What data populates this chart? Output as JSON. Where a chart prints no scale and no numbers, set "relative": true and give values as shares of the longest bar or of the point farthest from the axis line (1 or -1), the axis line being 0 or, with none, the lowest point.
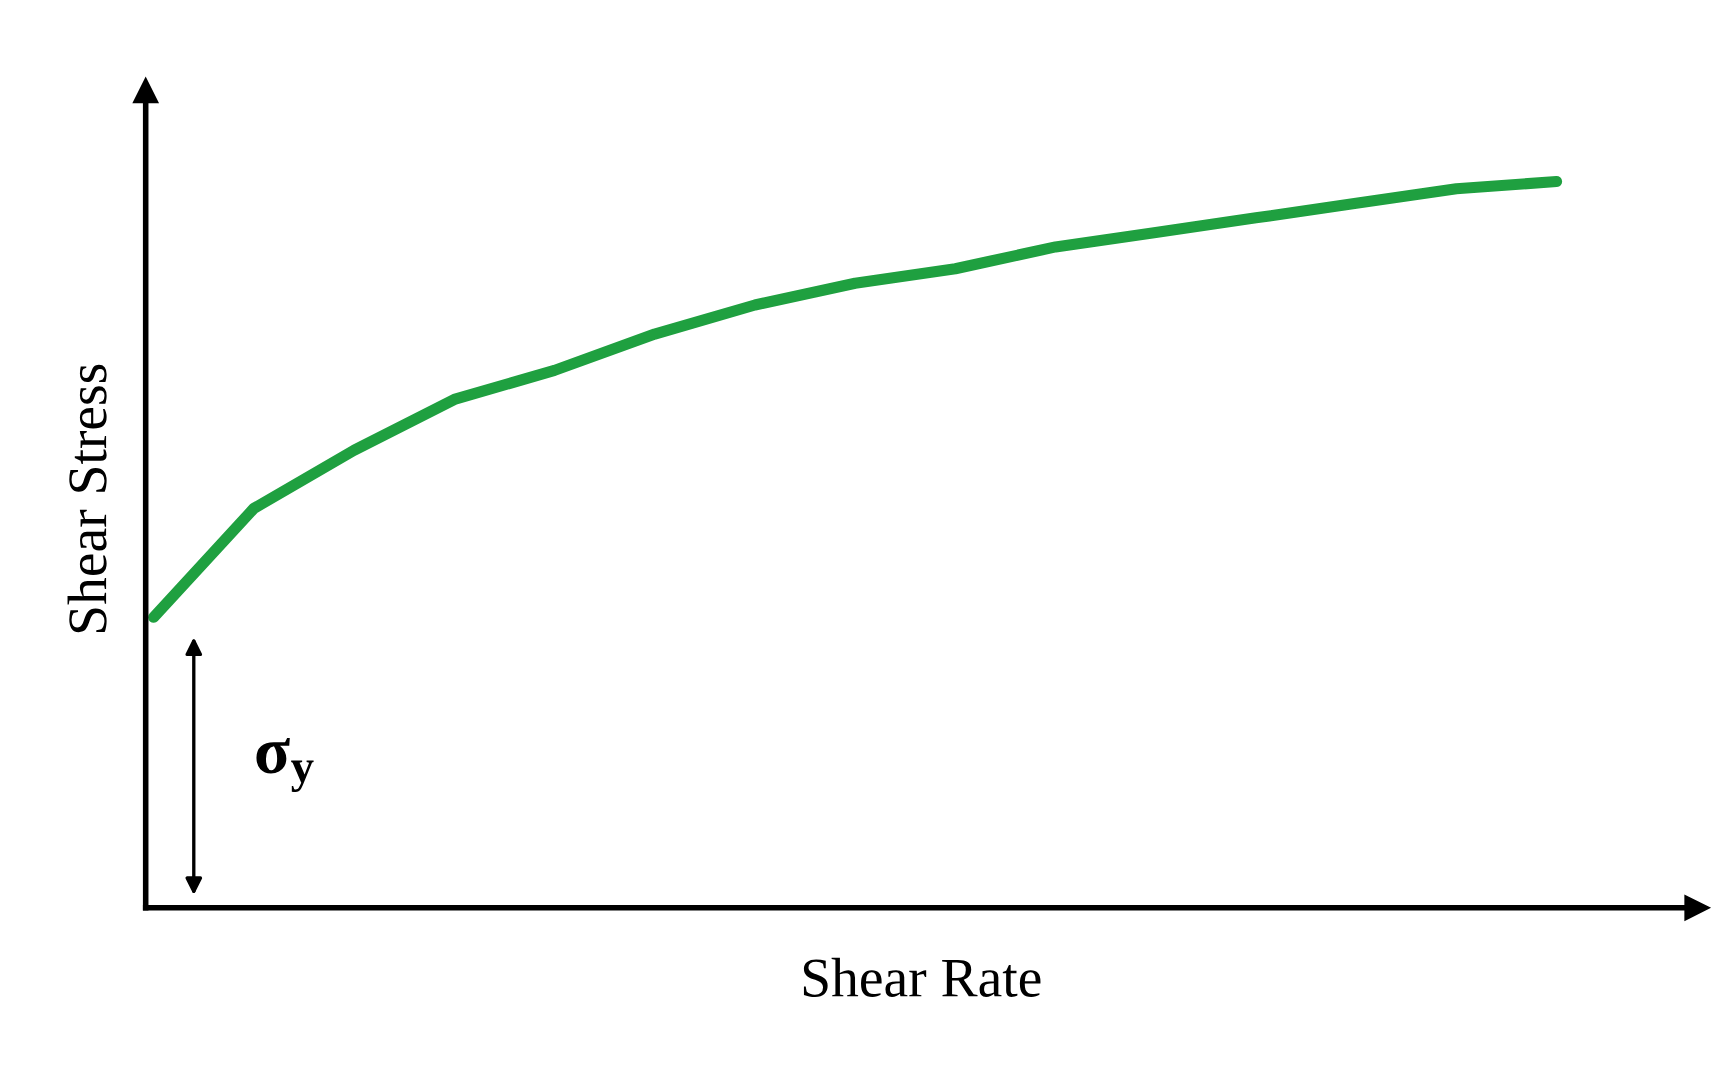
{
  "chart_data": {
    "type": "line",
    "relative": true,
    "xlabel": "Shear Rate",
    "ylabel": "Shear Stress",
    "categories": [
      null,
      null,
      null,
      null,
      null,
      null,
      null,
      null,
      null,
      null,
      null,
      null,
      null,
      null,
      null
    ],
    "series": [
      {
        "color": "#1fa040",
        "values": [
          0.4,
          0.55,
          0.63,
          0.7,
          0.74,
          0.79,
          0.83,
          0.86,
          0.88,
          0.91,
          0.93,
          0.95,
          0.97,
          0.99,
          1.0
        ]
      }
    ],
    "annotations": [
      "σ$_{y}$"
    ],
    "marker": "none",
    "line_style": "solid"
  }
}
